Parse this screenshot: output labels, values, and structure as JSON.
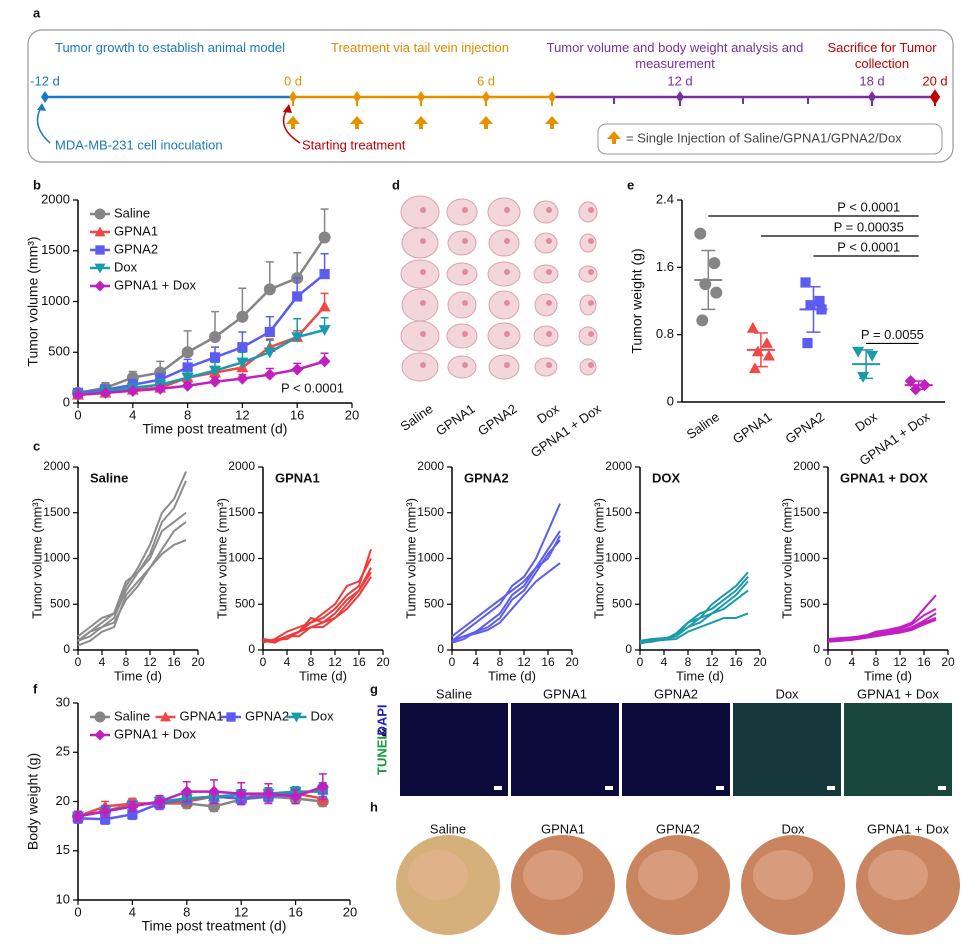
{
  "panel_letters": [
    "a",
    "b",
    "c",
    "d",
    "e",
    "f",
    "g",
    "h"
  ],
  "timeline": {
    "phases": [
      "Tumor growth to establish animal model",
      "Treatment via tail vein injection",
      "Tumor volume and body weight analysis and measurement",
      "Sacrifice for Tumor collection"
    ],
    "days": [
      "-12 d",
      "0 d",
      "6 d",
      "12 d",
      "18 d",
      "20 d"
    ],
    "inoculation": "MDA-MB-231 cell inoculation",
    "start": "Starting treatment",
    "legend": "= Single Injection of Saline/GPNA1/GPNA2/Dox"
  },
  "chart_data": [
    {
      "type": "line",
      "x": [
        0,
        2,
        4,
        6,
        8,
        10,
        12,
        14,
        16,
        18
      ],
      "xlim": [
        0,
        20
      ],
      "xticks": [
        0,
        4,
        8,
        12,
        16,
        20
      ],
      "ylim": [
        0,
        2000
      ],
      "yticks": [
        0,
        500,
        1000,
        1500,
        2000
      ],
      "x_label": "Time post treatment (d)",
      "y_label": "Tumor volume (mm³)",
      "legend": "upper left",
      "annotation": "P < 0.0001",
      "series": [
        {
          "name": "Saline",
          "color": "#858585",
          "marker": "circle",
          "values": [
            100,
            150,
            250,
            300,
            500,
            650,
            850,
            1120,
            1230,
            1630
          ],
          "errors": [
            20,
            50,
            60,
            110,
            210,
            250,
            280,
            270,
            250,
            280
          ]
        },
        {
          "name": "GPNA1",
          "color": "#f04848",
          "marker": "triangle",
          "values": [
            80,
            100,
            130,
            150,
            250,
            300,
            350,
            550,
            650,
            950
          ],
          "errors": [
            10,
            20,
            30,
            40,
            60,
            60,
            60,
            80,
            60,
            130
          ]
        },
        {
          "name": "GPNA2",
          "color": "#5c5cf0",
          "marker": "square",
          "values": [
            100,
            130,
            180,
            230,
            350,
            450,
            550,
            700,
            1050,
            1270
          ],
          "errors": [
            20,
            30,
            50,
            60,
            80,
            100,
            150,
            150,
            180,
            200
          ]
        },
        {
          "name": "Dox",
          "color": "#1a9aaa",
          "marker": "triangle-down",
          "values": [
            80,
            120,
            150,
            180,
            250,
            320,
            400,
            500,
            650,
            720
          ],
          "errors": [
            20,
            30,
            40,
            50,
            60,
            80,
            100,
            120,
            180,
            120
          ]
        },
        {
          "name": "GPNA1 + Dox",
          "color": "#c020c0",
          "marker": "diamond",
          "values": [
            80,
            100,
            120,
            140,
            170,
            210,
            240,
            280,
            330,
            410
          ],
          "errors": [
            10,
            20,
            20,
            30,
            30,
            40,
            40,
            60,
            60,
            80
          ]
        }
      ]
    },
    {
      "type": "line",
      "title": "Saline",
      "x": [
        0,
        2,
        4,
        6,
        8,
        10,
        12,
        14,
        16,
        18
      ],
      "xlim": [
        0,
        20
      ],
      "xticks": [
        0,
        4,
        8,
        12,
        16,
        20
      ],
      "ylim": [
        0,
        2000
      ],
      "yticks": [
        0,
        500,
        1000,
        1500,
        2000
      ],
      "x_label": "Time (d)",
      "y_label": "Tumor volume (mm³)",
      "series": [
        {
          "color": "#8c8c8c",
          "values": [
            100,
            200,
            300,
            400,
            700,
            900,
            1150,
            1500,
            1650,
            1950
          ]
        },
        {
          "color": "#8c8c8c",
          "values": [
            100,
            150,
            250,
            350,
            650,
            850,
            1050,
            1400,
            1550,
            1850
          ]
        },
        {
          "color": "#8c8c8c",
          "values": [
            150,
            250,
            350,
            400,
            750,
            850,
            1000,
            1300,
            1400,
            1500
          ]
        },
        {
          "color": "#8c8c8c",
          "values": [
            100,
            200,
            250,
            300,
            550,
            700,
            900,
            1100,
            1300,
            1400
          ]
        },
        {
          "color": "#8c8c8c",
          "values": [
            50,
            100,
            200,
            250,
            600,
            750,
            900,
            1050,
            1150,
            1200
          ]
        }
      ]
    },
    {
      "type": "line",
      "title": "GPNA1",
      "x": [
        0,
        2,
        4,
        6,
        8,
        10,
        12,
        14,
        16,
        18
      ],
      "xlim": [
        0,
        20
      ],
      "xticks": [
        0,
        4,
        8,
        12,
        16,
        20
      ],
      "ylim": [
        0,
        2000
      ],
      "yticks": [
        0,
        500,
        1000,
        1500,
        2000
      ],
      "x_label": "Time (d)",
      "y_label": "Tumor volume (mm³)",
      "series": [
        {
          "color": "#ee3a3a",
          "values": [
            100,
            100,
            150,
            200,
            300,
            350,
            450,
            600,
            700,
            1100
          ]
        },
        {
          "color": "#ee3a3a",
          "values": [
            80,
            120,
            200,
            250,
            300,
            400,
            500,
            700,
            750,
            1000
          ]
        },
        {
          "color": "#ee3a3a",
          "values": [
            100,
            80,
            150,
            200,
            350,
            300,
            400,
            550,
            650,
            900
          ]
        },
        {
          "color": "#ee3a3a",
          "values": [
            120,
            100,
            150,
            150,
            250,
            300,
            350,
            500,
            650,
            850
          ]
        },
        {
          "color": "#ee3a3a",
          "values": [
            90,
            110,
            120,
            200,
            250,
            250,
            350,
            450,
            600,
            800
          ]
        }
      ]
    },
    {
      "type": "line",
      "title": "GPNA2",
      "x": [
        0,
        2,
        4,
        6,
        8,
        10,
        12,
        14,
        16,
        18
      ],
      "xlim": [
        0,
        20
      ],
      "xticks": [
        0,
        4,
        8,
        12,
        16,
        20
      ],
      "ylim": [
        0,
        2000
      ],
      "yticks": [
        0,
        500,
        1000,
        1500,
        2000
      ],
      "x_label": "Time (d)",
      "y_label": "Tumor volume (mm³)",
      "series": [
        {
          "color": "#5d5dee",
          "values": [
            100,
            200,
            300,
            400,
            500,
            700,
            800,
            1000,
            1300,
            1600
          ]
        },
        {
          "color": "#5d5dee",
          "values": [
            150,
            250,
            350,
            450,
            550,
            650,
            750,
            900,
            1100,
            1300
          ]
        },
        {
          "color": "#5d5dee",
          "values": [
            100,
            150,
            200,
            300,
            400,
            600,
            700,
            900,
            1000,
            1250
          ]
        },
        {
          "color": "#5d5dee",
          "values": [
            80,
            120,
            200,
            250,
            350,
            550,
            650,
            850,
            1050,
            1200
          ]
        },
        {
          "color": "#5d5dee",
          "values": [
            100,
            150,
            180,
            220,
            300,
            450,
            600,
            750,
            850,
            950
          ]
        }
      ]
    },
    {
      "type": "line",
      "title": "DOX",
      "x": [
        0,
        2,
        4,
        6,
        8,
        10,
        12,
        14,
        16,
        18
      ],
      "xlim": [
        0,
        20
      ],
      "xticks": [
        0,
        4,
        8,
        12,
        16,
        20
      ],
      "ylim": [
        0,
        2000
      ],
      "yticks": [
        0,
        500,
        1000,
        1500,
        2000
      ],
      "x_label": "Time (d)",
      "y_label": "Tumor volume (mm³)",
      "series": [
        {
          "color": "#1b9aaa",
          "values": [
            80,
            100,
            120,
            150,
            250,
            350,
            500,
            600,
            700,
            850
          ]
        },
        {
          "color": "#1b9aaa",
          "values": [
            100,
            120,
            130,
            150,
            300,
            400,
            450,
            550,
            650,
            800
          ]
        },
        {
          "color": "#1b9aaa",
          "values": [
            90,
            100,
            110,
            180,
            300,
            350,
            400,
            500,
            600,
            750
          ]
        },
        {
          "color": "#1b9aaa",
          "values": [
            80,
            90,
            120,
            150,
            250,
            300,
            400,
            450,
            550,
            650
          ]
        },
        {
          "color": "#1b9aaa",
          "values": [
            70,
            100,
            110,
            120,
            200,
            250,
            300,
            350,
            350,
            400
          ]
        }
      ]
    },
    {
      "type": "line",
      "title": "GPNA1 + DOX",
      "x": [
        0,
        2,
        4,
        6,
        8,
        10,
        12,
        14,
        16,
        18
      ],
      "xlim": [
        0,
        20
      ],
      "xticks": [
        0,
        4,
        8,
        12,
        16,
        20
      ],
      "ylim": [
        0,
        2000
      ],
      "yticks": [
        0,
        500,
        1000,
        1500,
        2000
      ],
      "x_label": "Time (d)",
      "y_label": "Tumor volume (mm³)",
      "series": [
        {
          "color": "#c21fc2",
          "values": [
            120,
            130,
            140,
            150,
            200,
            220,
            250,
            300,
            450,
            600
          ]
        },
        {
          "color": "#c21fc2",
          "values": [
            100,
            110,
            130,
            150,
            180,
            200,
            230,
            280,
            380,
            450
          ]
        },
        {
          "color": "#c21fc2",
          "values": [
            110,
            120,
            130,
            160,
            170,
            190,
            210,
            250,
            320,
            400
          ]
        },
        {
          "color": "#c21fc2",
          "values": [
            100,
            110,
            120,
            140,
            150,
            180,
            200,
            230,
            300,
            350
          ]
        },
        {
          "color": "#c21fc2",
          "values": [
            90,
            100,
            110,
            130,
            150,
            170,
            190,
            220,
            280,
            330
          ]
        }
      ]
    },
    {
      "type": "dot",
      "categories": [
        "Saline",
        "GPNA1",
        "GPNA2",
        "Dox",
        "GPNA1 + Dox"
      ],
      "y_label": "Tumor weight (g)",
      "ylim": [
        0,
        2.4
      ],
      "yticks": [
        0,
        0.8,
        1.6,
        2.4
      ],
      "colors": [
        "#858585",
        "#f04848",
        "#5c5cf0",
        "#1a9aaa",
        "#c020c0"
      ],
      "markers": [
        "circle",
        "triangle",
        "square",
        "triangle-down",
        "diamond"
      ],
      "points": [
        [
          2.0,
          1.65,
          1.4,
          1.3,
          0.97
        ],
        [
          0.88,
          0.7,
          0.6,
          0.55,
          0.4
        ],
        [
          1.42,
          1.2,
          1.15,
          1.1,
          0.7
        ],
        [
          0.6,
          0.55,
          0.3
        ],
        [
          0.25,
          0.2,
          0.15
        ]
      ],
      "means": [
        1.45,
        0.62,
        1.1,
        0.45,
        0.2
      ],
      "sds": [
        0.35,
        0.2,
        0.27,
        0.17,
        0.05
      ],
      "comparisons": [
        {
          "label": "P < 0.0001",
          "from": 0,
          "to": 4
        },
        {
          "label": "P = 0.00035",
          "from": 1,
          "to": 4
        },
        {
          "label": "P < 0.0001",
          "from": 2,
          "to": 4
        },
        {
          "label": "P = 0.0055",
          "from": 3,
          "to": 4
        }
      ]
    },
    {
      "type": "line",
      "x": [
        0,
        2,
        4,
        6,
        8,
        10,
        12,
        14,
        16,
        18
      ],
      "xlim": [
        0,
        20
      ],
      "xticks": [
        0,
        4,
        8,
        12,
        16,
        20
      ],
      "ylim": [
        10,
        30
      ],
      "yticks": [
        10,
        15,
        20,
        25,
        30
      ],
      "x_label": "Time post treatment (d)",
      "y_label": "Body weight (g)",
      "legend": "upper left",
      "series": [
        {
          "name": "Saline",
          "color": "#858585",
          "marker": "circle",
          "values": [
            18.5,
            19,
            19.8,
            19.8,
            19.8,
            19.5,
            20.2,
            20.5,
            20.3,
            20
          ],
          "errors": [
            0.5,
            0.5,
            0.5,
            0.5,
            0.5,
            0.5,
            0.5,
            0.5,
            0.5,
            0.5
          ]
        },
        {
          "name": "GPNA1",
          "color": "#f04848",
          "marker": "triangle",
          "values": [
            18.5,
            19.5,
            19.8,
            19.8,
            20,
            20.5,
            20.3,
            20.8,
            20.8,
            20.3
          ],
          "errors": [
            0.5,
            0.5,
            0.5,
            0.6,
            0.5,
            0.5,
            0.5,
            0.5,
            0.5,
            0.6
          ]
        },
        {
          "name": "GPNA2",
          "color": "#5c5cf0",
          "marker": "square",
          "values": [
            18.3,
            18.2,
            18.7,
            19.8,
            20.3,
            20.5,
            20.3,
            20.5,
            20.8,
            21.2
          ],
          "errors": [
            0.5,
            0.5,
            0.5,
            0.6,
            0.5,
            0.6,
            0.5,
            0.5,
            0.5,
            0.7
          ]
        },
        {
          "name": "Dox",
          "color": "#1a9aaa",
          "marker": "triangle-down",
          "values": [
            18.5,
            19,
            19.5,
            20,
            20.3,
            20.5,
            20.7,
            20.8,
            21,
            21
          ],
          "errors": [
            0.5,
            0.5,
            0.5,
            0.6,
            0.6,
            0.5,
            0.5,
            0.6,
            0.5,
            0.8
          ]
        },
        {
          "name": "GPNA1 + Dox",
          "color": "#c020c0",
          "marker": "diamond",
          "values": [
            18.5,
            19,
            19.5,
            20,
            21,
            21,
            20.8,
            20.8,
            20.5,
            21.5
          ],
          "errors": [
            0.5,
            0.6,
            0.5,
            0.6,
            1,
            1.2,
            1.1,
            1,
            0.7,
            1.3
          ]
        }
      ]
    }
  ],
  "tumor_photos": {
    "labels": [
      "Saline",
      "GPNA1",
      "GPNA2",
      "Dox",
      "GPNA1 + Dox"
    ]
  },
  "tunel": {
    "labels": [
      "Saline",
      "GPNA1",
      "GPNA2",
      "Dox",
      "GPNA1 + Dox"
    ],
    "stain_labels": [
      "TUNEL",
      "&",
      "DAPI"
    ]
  },
  "livers": {
    "labels": [
      "Saline",
      "GPNA1",
      "GPNA2",
      "Dox",
      "GPNA1 + Dox"
    ]
  }
}
